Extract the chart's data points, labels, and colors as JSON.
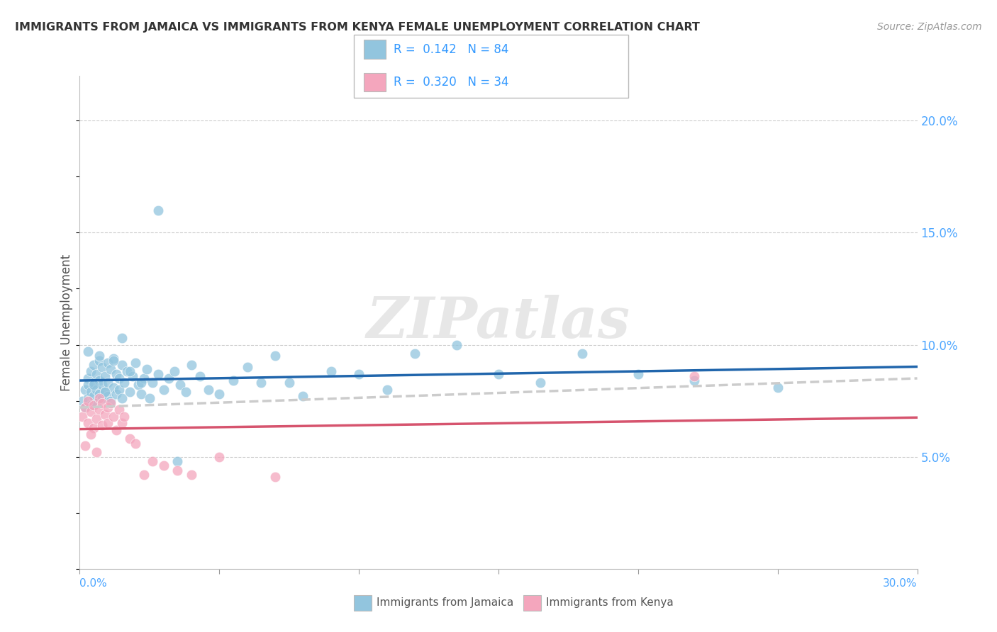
{
  "title": "IMMIGRANTS FROM JAMAICA VS IMMIGRANTS FROM KENYA FEMALE UNEMPLOYMENT CORRELATION CHART",
  "source": "Source: ZipAtlas.com",
  "ylabel": "Female Unemployment",
  "legend1_R": "0.142",
  "legend1_N": "84",
  "legend2_R": "0.320",
  "legend2_N": "34",
  "legend1_label": "Immigrants from Jamaica",
  "legend2_label": "Immigrants from Kenya",
  "jamaica_color": "#92c5de",
  "kenya_color": "#f4a6bd",
  "jamaica_line_color": "#2166ac",
  "kenya_line_color": "#d6546e",
  "dashed_line_color": "#cccccc",
  "watermark": "ZIPatlas",
  "xlim": [
    0.0,
    0.3
  ],
  "ylim": [
    0.0,
    0.22
  ],
  "ytick_vals": [
    0.05,
    0.1,
    0.15,
    0.2
  ],
  "ytick_labels": [
    "5.0%",
    "10.0%",
    "15.0%",
    "20.0%"
  ],
  "jamaica_x": [
    0.001,
    0.002,
    0.002,
    0.003,
    0.003,
    0.003,
    0.004,
    0.004,
    0.004,
    0.005,
    0.005,
    0.005,
    0.006,
    0.006,
    0.006,
    0.007,
    0.007,
    0.007,
    0.008,
    0.008,
    0.008,
    0.009,
    0.009,
    0.01,
    0.01,
    0.01,
    0.011,
    0.011,
    0.012,
    0.012,
    0.013,
    0.013,
    0.014,
    0.014,
    0.015,
    0.015,
    0.016,
    0.017,
    0.018,
    0.019,
    0.02,
    0.021,
    0.022,
    0.023,
    0.024,
    0.025,
    0.026,
    0.028,
    0.03,
    0.032,
    0.034,
    0.036,
    0.038,
    0.04,
    0.043,
    0.046,
    0.05,
    0.055,
    0.06,
    0.065,
    0.07,
    0.075,
    0.08,
    0.09,
    0.1,
    0.11,
    0.12,
    0.135,
    0.15,
    0.165,
    0.18,
    0.2,
    0.22,
    0.25,
    0.003,
    0.005,
    0.007,
    0.009,
    0.012,
    0.015,
    0.018,
    0.022,
    0.028,
    0.035
  ],
  "jamaica_y": [
    0.075,
    0.08,
    0.072,
    0.085,
    0.076,
    0.082,
    0.088,
    0.073,
    0.079,
    0.091,
    0.077,
    0.083,
    0.087,
    0.074,
    0.08,
    0.093,
    0.078,
    0.084,
    0.09,
    0.076,
    0.082,
    0.086,
    0.079,
    0.092,
    0.077,
    0.083,
    0.089,
    0.075,
    0.094,
    0.081,
    0.087,
    0.078,
    0.085,
    0.08,
    0.091,
    0.076,
    0.083,
    0.088,
    0.079,
    0.086,
    0.092,
    0.082,
    0.078,
    0.085,
    0.089,
    0.076,
    0.083,
    0.087,
    0.08,
    0.085,
    0.088,
    0.082,
    0.079,
    0.091,
    0.086,
    0.08,
    0.078,
    0.084,
    0.09,
    0.083,
    0.095,
    0.083,
    0.077,
    0.088,
    0.087,
    0.08,
    0.096,
    0.1,
    0.087,
    0.083,
    0.096,
    0.087,
    0.084,
    0.081,
    0.097,
    0.082,
    0.095,
    0.079,
    0.093,
    0.103,
    0.088,
    0.083,
    0.16,
    0.048
  ],
  "kenya_x": [
    0.001,
    0.002,
    0.003,
    0.003,
    0.004,
    0.005,
    0.005,
    0.006,
    0.007,
    0.007,
    0.008,
    0.008,
    0.009,
    0.01,
    0.01,
    0.011,
    0.012,
    0.013,
    0.014,
    0.015,
    0.016,
    0.018,
    0.02,
    0.023,
    0.026,
    0.03,
    0.035,
    0.04,
    0.05,
    0.07,
    0.002,
    0.004,
    0.006,
    0.22
  ],
  "kenya_y": [
    0.068,
    0.072,
    0.065,
    0.075,
    0.07,
    0.063,
    0.073,
    0.067,
    0.071,
    0.076,
    0.064,
    0.074,
    0.069,
    0.072,
    0.065,
    0.074,
    0.068,
    0.062,
    0.071,
    0.065,
    0.068,
    0.058,
    0.056,
    0.042,
    0.048,
    0.046,
    0.044,
    0.042,
    0.05,
    0.041,
    0.055,
    0.06,
    0.052,
    0.086
  ],
  "jam_trendline": [
    0.074,
    0.084
  ],
  "ken_trendline": [
    0.064,
    0.084
  ],
  "dashed_trendline": [
    0.072,
    0.085
  ]
}
